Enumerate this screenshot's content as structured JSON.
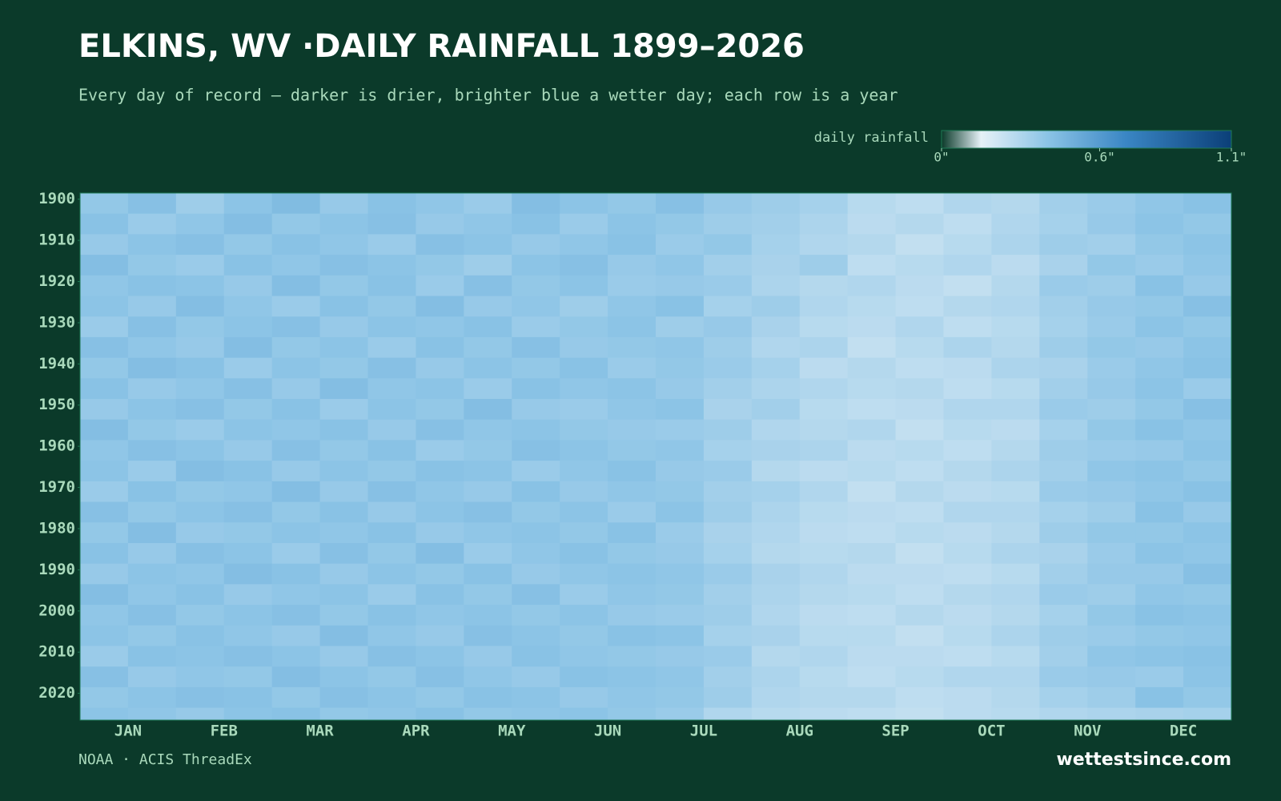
{
  "chart_data": {
    "type": "heatmap",
    "title": "ELKINS, WV ·DAILY RAINFALL 1899–2026",
    "subtitle": "Every day of record — darker is drier, brighter blue a wetter day; each row is a year",
    "colorbar_label": "daily rainfall",
    "zlim": [
      0,
      1.1
    ],
    "zticks": [
      {
        "value": 0,
        "label": "0\""
      },
      {
        "value": 0.6,
        "label": "0.6\""
      },
      {
        "value": 1.1,
        "label": "1.1\""
      }
    ],
    "colorscale": [
      [
        0,
        "#0b3a2a"
      ],
      [
        0.15,
        "#e6f1f7"
      ],
      [
        0.4,
        "#8cc4e6"
      ],
      [
        0.7,
        "#3a86c4"
      ],
      [
        1.1,
        "#0b3f78"
      ]
    ],
    "categories": [
      "JAN",
      "FEB",
      "MAR",
      "APR",
      "MAY",
      "JUN",
      "JUL",
      "AUG",
      "SEP",
      "OCT",
      "NOV",
      "DEC"
    ],
    "y": [
      1899,
      1904,
      1909,
      1914,
      1919,
      1924,
      1929,
      1934,
      1939,
      1944,
      1949,
      1954,
      1959,
      1964,
      1969,
      1974,
      1979,
      1984,
      1989,
      1994,
      1999,
      2004,
      2009,
      2014,
      2019,
      2024
    ],
    "ylim": [
      1899,
      2027
    ],
    "yticks": [
      1900,
      1910,
      1920,
      1930,
      1940,
      1950,
      1960,
      1970,
      1980,
      1990,
      2000,
      2010,
      2020
    ],
    "values": [
      [
        0.38,
        0.42,
        0.35,
        0.4,
        0.44,
        0.37,
        0.41,
        0.39,
        0.36,
        0.43,
        0.4,
        0.38,
        0.42,
        0.37,
        0.35,
        0.33,
        0.28,
        0.26,
        0.3,
        0.29,
        0.34,
        0.36,
        0.39,
        0.41
      ],
      [
        0.41,
        0.36,
        0.39,
        0.43,
        0.38,
        0.4,
        0.42,
        0.37,
        0.39,
        0.41,
        0.36,
        0.4,
        0.38,
        0.35,
        0.34,
        0.31,
        0.27,
        0.29,
        0.26,
        0.3,
        0.33,
        0.37,
        0.4,
        0.38
      ],
      [
        0.37,
        0.4,
        0.42,
        0.38,
        0.41,
        0.39,
        0.36,
        0.42,
        0.4,
        0.37,
        0.39,
        0.41,
        0.36,
        0.38,
        0.33,
        0.3,
        0.29,
        0.25,
        0.28,
        0.31,
        0.35,
        0.34,
        0.38,
        0.4
      ],
      [
        0.43,
        0.38,
        0.36,
        0.41,
        0.39,
        0.42,
        0.4,
        0.38,
        0.35,
        0.4,
        0.42,
        0.37,
        0.39,
        0.34,
        0.32,
        0.35,
        0.26,
        0.28,
        0.3,
        0.27,
        0.32,
        0.38,
        0.36,
        0.39
      ],
      [
        0.39,
        0.41,
        0.4,
        0.37,
        0.43,
        0.38,
        0.41,
        0.36,
        0.42,
        0.38,
        0.4,
        0.36,
        0.37,
        0.36,
        0.31,
        0.29,
        0.3,
        0.27,
        0.25,
        0.29,
        0.36,
        0.35,
        0.41,
        0.37
      ],
      [
        0.4,
        0.37,
        0.43,
        0.39,
        0.36,
        0.41,
        0.38,
        0.43,
        0.37,
        0.39,
        0.35,
        0.39,
        0.41,
        0.33,
        0.35,
        0.3,
        0.28,
        0.26,
        0.29,
        0.3,
        0.34,
        0.37,
        0.38,
        0.42
      ],
      [
        0.36,
        0.42,
        0.38,
        0.4,
        0.42,
        0.37,
        0.4,
        0.39,
        0.41,
        0.36,
        0.38,
        0.4,
        0.35,
        0.37,
        0.32,
        0.28,
        0.27,
        0.3,
        0.26,
        0.28,
        0.33,
        0.36,
        0.4,
        0.38
      ],
      [
        0.42,
        0.39,
        0.37,
        0.43,
        0.38,
        0.4,
        0.36,
        0.41,
        0.38,
        0.42,
        0.37,
        0.38,
        0.39,
        0.35,
        0.3,
        0.31,
        0.25,
        0.28,
        0.31,
        0.29,
        0.35,
        0.38,
        0.37,
        0.4
      ],
      [
        0.38,
        0.43,
        0.41,
        0.36,
        0.4,
        0.38,
        0.42,
        0.37,
        0.4,
        0.38,
        0.41,
        0.36,
        0.38,
        0.36,
        0.33,
        0.27,
        0.29,
        0.26,
        0.27,
        0.31,
        0.32,
        0.36,
        0.39,
        0.41
      ],
      [
        0.41,
        0.37,
        0.39,
        0.42,
        0.37,
        0.43,
        0.39,
        0.4,
        0.36,
        0.41,
        0.39,
        0.4,
        0.37,
        0.34,
        0.31,
        0.3,
        0.28,
        0.29,
        0.26,
        0.28,
        0.34,
        0.37,
        0.4,
        0.36
      ],
      [
        0.37,
        0.4,
        0.42,
        0.38,
        0.41,
        0.36,
        0.4,
        0.38,
        0.43,
        0.37,
        0.36,
        0.39,
        0.4,
        0.32,
        0.34,
        0.28,
        0.26,
        0.27,
        0.3,
        0.3,
        0.36,
        0.35,
        0.38,
        0.42
      ],
      [
        0.43,
        0.38,
        0.36,
        0.4,
        0.39,
        0.41,
        0.37,
        0.42,
        0.39,
        0.4,
        0.38,
        0.37,
        0.36,
        0.35,
        0.3,
        0.29,
        0.3,
        0.25,
        0.28,
        0.27,
        0.33,
        0.38,
        0.41,
        0.39
      ],
      [
        0.39,
        0.42,
        0.4,
        0.37,
        0.42,
        0.38,
        0.41,
        0.36,
        0.38,
        0.42,
        0.4,
        0.38,
        0.39,
        0.33,
        0.32,
        0.31,
        0.27,
        0.28,
        0.26,
        0.29,
        0.35,
        0.36,
        0.37,
        0.4
      ],
      [
        0.4,
        0.36,
        0.43,
        0.41,
        0.37,
        0.4,
        0.38,
        0.41,
        0.4,
        0.36,
        0.39,
        0.41,
        0.37,
        0.36,
        0.29,
        0.27,
        0.28,
        0.26,
        0.29,
        0.31,
        0.34,
        0.39,
        0.4,
        0.38
      ],
      [
        0.36,
        0.41,
        0.38,
        0.39,
        0.43,
        0.37,
        0.42,
        0.39,
        0.37,
        0.41,
        0.37,
        0.39,
        0.38,
        0.34,
        0.33,
        0.3,
        0.25,
        0.29,
        0.27,
        0.28,
        0.36,
        0.37,
        0.39,
        0.41
      ],
      [
        0.42,
        0.38,
        0.4,
        0.42,
        0.38,
        0.41,
        0.37,
        0.4,
        0.42,
        0.38,
        0.4,
        0.36,
        0.4,
        0.35,
        0.31,
        0.28,
        0.27,
        0.26,
        0.3,
        0.3,
        0.33,
        0.35,
        0.41,
        0.37
      ],
      [
        0.38,
        0.43,
        0.37,
        0.38,
        0.4,
        0.39,
        0.41,
        0.37,
        0.39,
        0.4,
        0.38,
        0.41,
        0.36,
        0.32,
        0.3,
        0.27,
        0.26,
        0.28,
        0.27,
        0.29,
        0.35,
        0.38,
        0.38,
        0.4
      ],
      [
        0.41,
        0.37,
        0.42,
        0.4,
        0.36,
        0.42,
        0.38,
        0.43,
        0.36,
        0.39,
        0.41,
        0.38,
        0.37,
        0.33,
        0.29,
        0.28,
        0.29,
        0.25,
        0.28,
        0.31,
        0.32,
        0.36,
        0.4,
        0.39
      ],
      [
        0.37,
        0.4,
        0.39,
        0.43,
        0.41,
        0.37,
        0.4,
        0.38,
        0.41,
        0.37,
        0.39,
        0.4,
        0.39,
        0.36,
        0.32,
        0.3,
        0.27,
        0.27,
        0.26,
        0.28,
        0.34,
        0.37,
        0.37,
        0.42
      ],
      [
        0.43,
        0.39,
        0.41,
        0.37,
        0.39,
        0.4,
        0.36,
        0.41,
        0.38,
        0.42,
        0.36,
        0.39,
        0.38,
        0.34,
        0.31,
        0.29,
        0.28,
        0.26,
        0.29,
        0.3,
        0.36,
        0.35,
        0.39,
        0.38
      ],
      [
        0.39,
        0.42,
        0.38,
        0.4,
        0.42,
        0.38,
        0.41,
        0.39,
        0.4,
        0.38,
        0.4,
        0.37,
        0.36,
        0.35,
        0.3,
        0.27,
        0.26,
        0.29,
        0.27,
        0.29,
        0.33,
        0.38,
        0.41,
        0.4
      ],
      [
        0.4,
        0.38,
        0.41,
        0.39,
        0.37,
        0.43,
        0.39,
        0.37,
        0.42,
        0.4,
        0.38,
        0.41,
        0.4,
        0.33,
        0.32,
        0.28,
        0.28,
        0.25,
        0.28,
        0.31,
        0.35,
        0.36,
        0.38,
        0.39
      ],
      [
        0.36,
        0.41,
        0.4,
        0.42,
        0.4,
        0.37,
        0.42,
        0.4,
        0.37,
        0.41,
        0.39,
        0.38,
        0.37,
        0.36,
        0.29,
        0.3,
        0.27,
        0.27,
        0.26,
        0.28,
        0.34,
        0.39,
        0.4,
        0.41
      ],
      [
        0.42,
        0.37,
        0.39,
        0.38,
        0.43,
        0.4,
        0.38,
        0.42,
        0.39,
        0.37,
        0.41,
        0.4,
        0.39,
        0.34,
        0.31,
        0.28,
        0.26,
        0.28,
        0.3,
        0.3,
        0.36,
        0.37,
        0.36,
        0.4
      ],
      [
        0.38,
        0.4,
        0.42,
        0.41,
        0.38,
        0.42,
        0.4,
        0.38,
        0.41,
        0.4,
        0.37,
        0.39,
        0.38,
        0.35,
        0.3,
        0.29,
        0.29,
        0.26,
        0.27,
        0.29,
        0.33,
        0.35,
        0.41,
        0.38
      ],
      [
        0.4,
        0.39,
        0.37,
        0.4,
        0.41,
        0.38,
        0.39,
        0.41,
        0.38,
        0.39,
        0.4,
        0.38,
        0.36,
        0.3,
        0.28,
        0.27,
        0.26,
        0.25,
        0.27,
        0.28,
        0.3,
        0.31,
        0.32,
        0.33
      ]
    ],
    "source": "NOAA · ACIS ThreadEx",
    "brand": "wettestsince.com"
  }
}
